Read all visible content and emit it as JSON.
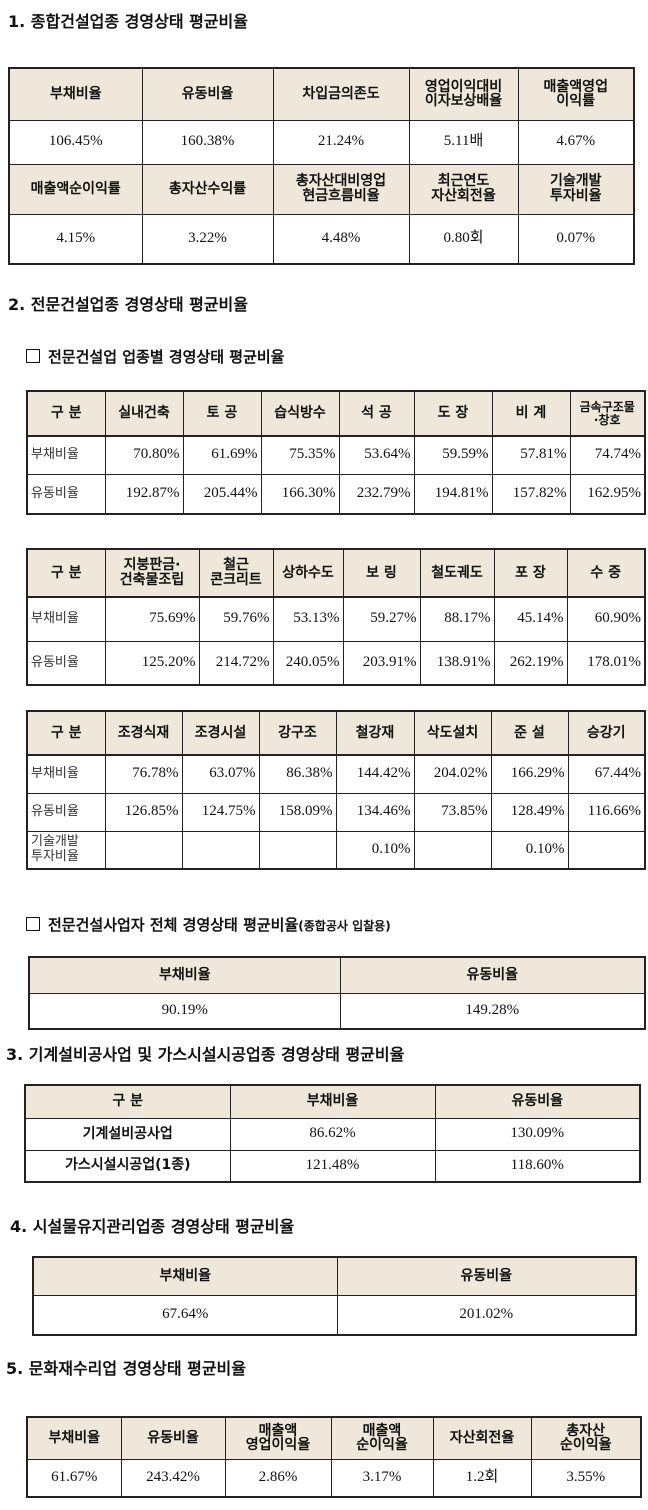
{
  "s1": {
    "title": "1. 종합건설업종 경영상태 평균비율",
    "row1_headers": [
      "부채비율",
      "유동비율",
      "차입금의존도",
      "영업이익대비\n이자보상배율",
      "매출액영업\n이익률"
    ],
    "row1_values": [
      "106.45%",
      "160.38%",
      "21.24%",
      "5.11배",
      "4.67%"
    ],
    "row2_headers": [
      "매출액순이익률",
      "총자산수익률",
      "총자산대비영업\n현금흐름비율",
      "최근연도\n자산회전율",
      "기술개발\n투자비율"
    ],
    "row2_values": [
      "4.15%",
      "3.22%",
      "4.48%",
      "0.80회",
      "0.07%"
    ]
  },
  "s2": {
    "title": "2. 전문건설업종 경영상태 평균비율",
    "sub1": "전문건설업 업종별 경영상태 평균비율",
    "t1": {
      "headers": [
        "구 분",
        "실내건축",
        "토 공",
        "습식방수",
        "석 공",
        "도 장",
        "비 계",
        "금속구조물\n·창호"
      ],
      "rows": [
        {
          "label": "부채비율",
          "values": [
            "70.80%",
            "61.69%",
            "75.35%",
            "53.64%",
            "59.59%",
            "57.81%",
            "74.74%"
          ]
        },
        {
          "label": "유동비율",
          "values": [
            "192.87%",
            "205.44%",
            "166.30%",
            "232.79%",
            "194.81%",
            "157.82%",
            "162.95%"
          ]
        }
      ]
    },
    "t2": {
      "headers": [
        "구 분",
        "지붕판금·\n건축물조립",
        "철근\n콘크리트",
        "상하수도",
        "보 링",
        "철도궤도",
        "포 장",
        "수 중"
      ],
      "rows": [
        {
          "label": "부채비율",
          "values": [
            "75.69%",
            "59.76%",
            "53.13%",
            "59.27%",
            "88.17%",
            "45.14%",
            "60.90%"
          ]
        },
        {
          "label": "유동비율",
          "values": [
            "125.20%",
            "214.72%",
            "240.05%",
            "203.91%",
            "138.91%",
            "262.19%",
            "178.01%"
          ]
        }
      ]
    },
    "t3": {
      "headers": [
        "구 분",
        "조경식재",
        "조경시설",
        "강구조",
        "철강재",
        "삭도설치",
        "준 설",
        "승강기"
      ],
      "rows": [
        {
          "label": "부채비율",
          "values": [
            "76.78%",
            "63.07%",
            "86.38%",
            "144.42%",
            "204.02%",
            "166.29%",
            "67.44%"
          ]
        },
        {
          "label": "유동비율",
          "values": [
            "126.85%",
            "124.75%",
            "158.09%",
            "134.46%",
            "73.85%",
            "128.49%",
            "116.66%"
          ]
        },
        {
          "label": "기술개발\n투자비율",
          "values": [
            "",
            "",
            "",
            "0.10%",
            "",
            "0.10%",
            ""
          ]
        }
      ]
    },
    "sub2": "전문건설사업자 전체 경영상태 평균비율",
    "sub2_note": "(종합공사 입찰용)",
    "t4": {
      "headers": [
        "부채비율",
        "유동비율"
      ],
      "values": [
        "90.19%",
        "149.28%"
      ]
    }
  },
  "s3": {
    "title": "3. 기계설비공사업 및 가스시설시공업종 경영상태 평균비율",
    "headers": [
      "구 분",
      "부채비율",
      "유동비율"
    ],
    "rows": [
      {
        "label": "기계설비공사업",
        "values": [
          "86.62%",
          "130.09%"
        ]
      },
      {
        "label": "가스시설시공업(1종)",
        "values": [
          "121.48%",
          "118.60%"
        ]
      }
    ]
  },
  "s4": {
    "title": "4. 시설물유지관리업종 경영상태 평균비율",
    "headers": [
      "부채비율",
      "유동비율"
    ],
    "values": [
      "67.64%",
      "201.02%"
    ]
  },
  "s5": {
    "title": "5. 문화재수리업 경영상태 평균비율",
    "headers": [
      "부채비율",
      "유동비율",
      "매출액\n영업이익율",
      "매출액\n순이익율",
      "자산회전율",
      "총자산\n순이익율"
    ],
    "values": [
      "61.67%",
      "243.42%",
      "2.86%",
      "3.17%",
      "1.2회",
      "3.55%"
    ]
  }
}
